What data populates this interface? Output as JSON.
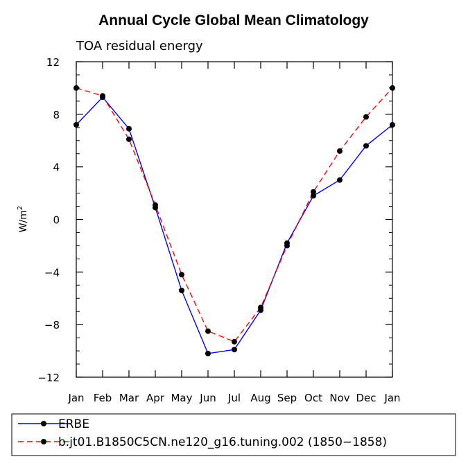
{
  "chart_data": {
    "type": "line",
    "title": "Annual Cycle Global Mean Climatology",
    "subtitle": "TOA residual energy",
    "ylabel_base": "W/m",
    "ylabel_exp": "2",
    "xlabel": "",
    "categories": [
      "Jan",
      "Feb",
      "Mar",
      "Apr",
      "May",
      "Jun",
      "Jul",
      "Aug",
      "Sep",
      "Oct",
      "Nov",
      "Dec",
      "Jan"
    ],
    "ylim": [
      -12,
      12
    ],
    "yticks": [
      -12,
      -8,
      -4,
      0,
      4,
      8,
      12
    ],
    "ytick_labels": [
      "−12",
      "−8",
      "−4",
      "0",
      "4",
      "8",
      "12"
    ],
    "series": [
      {
        "name": "ERBE",
        "color": "#0000ff",
        "dash": "solid",
        "values": [
          7.2,
          9.3,
          6.9,
          0.9,
          -5.4,
          -10.2,
          -9.9,
          -6.9,
          -1.8,
          1.8,
          3.0,
          5.6,
          7.2
        ]
      },
      {
        "name": "b.jt01.B1850C5CN.ne120_g16.tuning.002 (1850−1858)",
        "color": "#ff0000",
        "dash": "dashed",
        "values": [
          10.0,
          9.4,
          6.1,
          1.1,
          -4.2,
          -8.5,
          -9.3,
          -6.7,
          -2.0,
          2.1,
          5.2,
          7.8,
          10.0
        ]
      }
    ],
    "legend_position": "bottom"
  }
}
